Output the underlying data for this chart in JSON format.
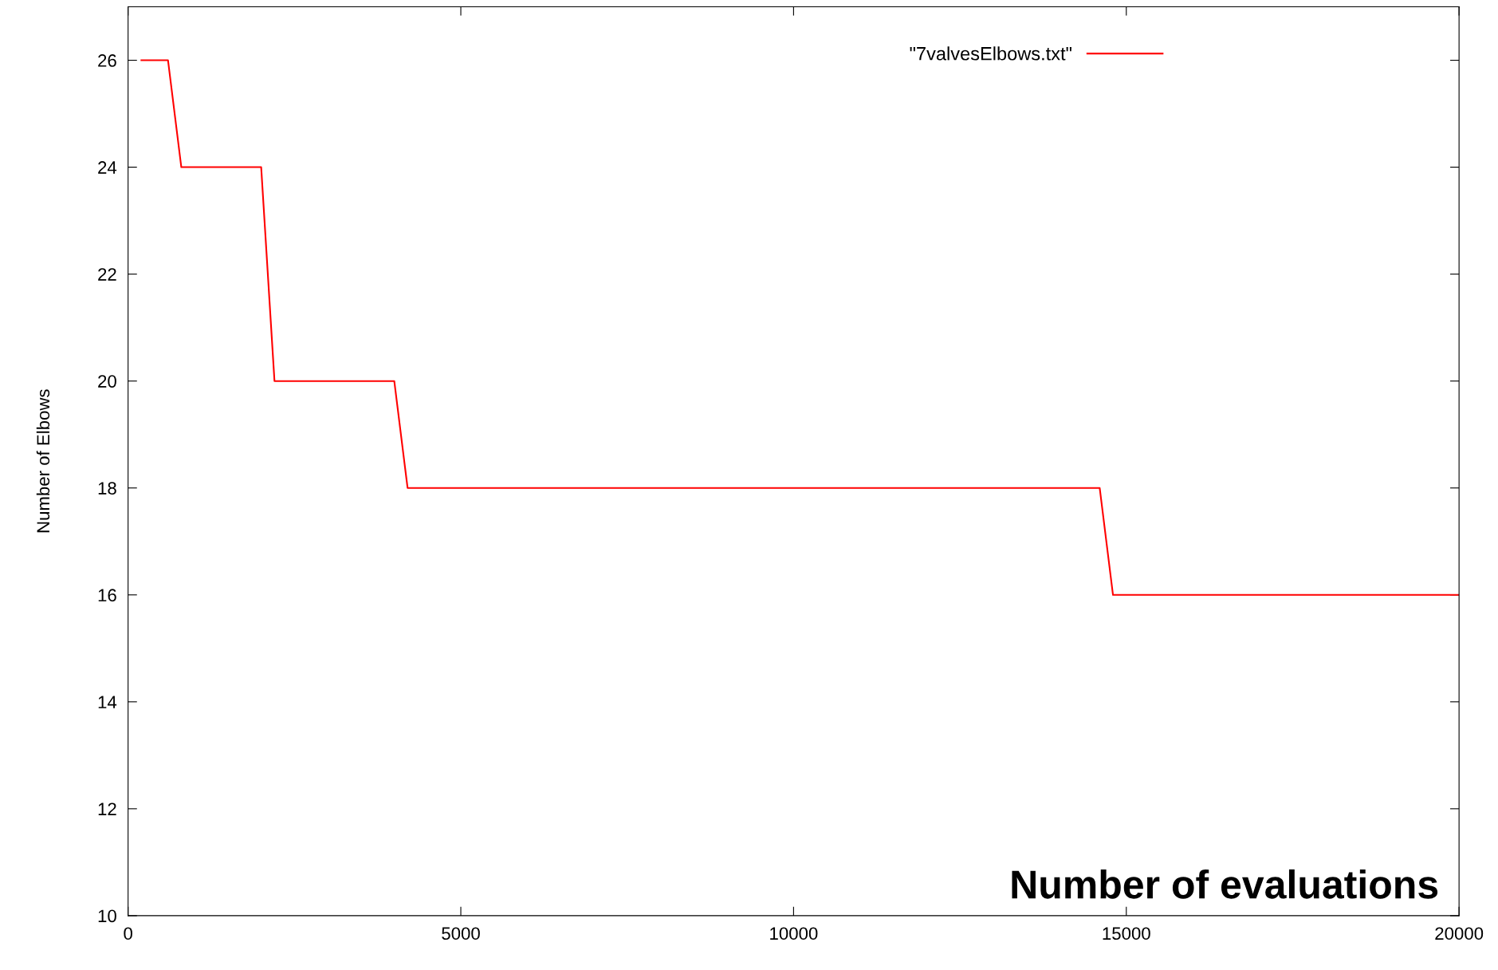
{
  "chart_data": {
    "type": "line",
    "xlabel": "Number of evaluations",
    "ylabel": "Number of Elbows",
    "series": [
      {
        "name": "\"7valvesElbows.txt\"",
        "color": "#ff0000",
        "x": [
          200,
          600,
          800,
          2000,
          2200,
          4000,
          4200,
          14600,
          14800,
          20000
        ],
        "values": [
          26,
          26,
          24,
          24,
          20,
          20,
          18,
          18,
          16,
          16
        ]
      }
    ],
    "xlim": [
      0,
      20000
    ],
    "xticks": [
      0,
      5000,
      10000,
      15000,
      20000
    ],
    "ylim": [
      10,
      27
    ],
    "yticks": [
      10,
      12,
      14,
      16,
      18,
      20,
      22,
      24,
      26
    ],
    "legend": "top right",
    "grid": false,
    "marker": "none",
    "line_style": "solid"
  }
}
